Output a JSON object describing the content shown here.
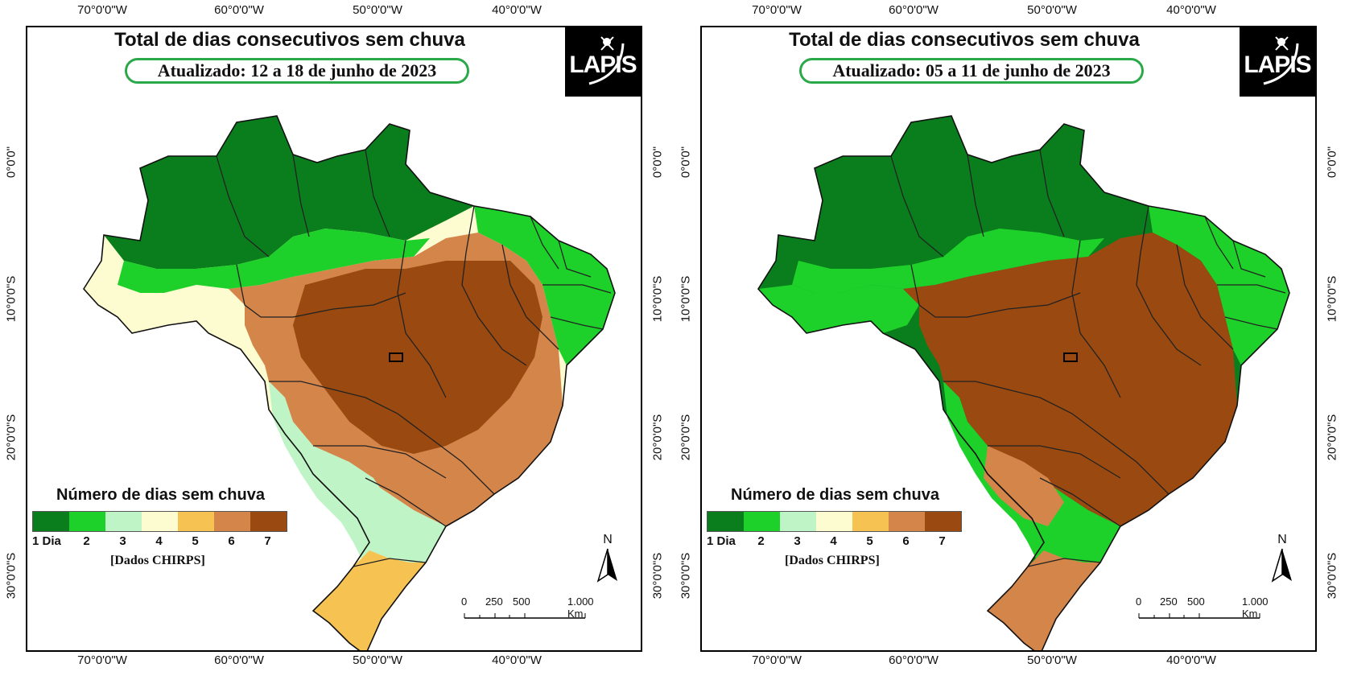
{
  "maps": [
    {
      "title": "Total de dias consecutivos sem chuva",
      "subtitle": "Atualizado: 12 a 18 de junho de 2023",
      "dominant_class": 6
    },
    {
      "title": "Total de dias consecutivos sem chuva",
      "subtitle": "Atualizado: 05 a 11 de junho de 2023",
      "dominant_class": 7
    }
  ],
  "logo_text": "LAPIS",
  "lon_ticks": [
    "70°0'0\"W",
    "60°0'0\"W",
    "50°0'0\"W",
    "40°0'0\"W"
  ],
  "lat_ticks": [
    "0°0'0\"",
    "10°0'0\"S",
    "20°0'0\"S",
    "30°0'0\"S"
  ],
  "legend": {
    "title": "Número de dias sem chuva",
    "labels": [
      "1 Dia",
      "2",
      "3",
      "4",
      "5",
      "6",
      "7"
    ],
    "colors": [
      "#0a7d1c",
      "#1ed12a",
      "#bff5c6",
      "#fdfbd0",
      "#f6c352",
      "#d4854a",
      "#9a4a10"
    ],
    "source": "[Dados CHIRPS]"
  },
  "north_label": "N",
  "scale_labels": [
    "0",
    "250",
    "500",
    "1.000 Km"
  ]
}
